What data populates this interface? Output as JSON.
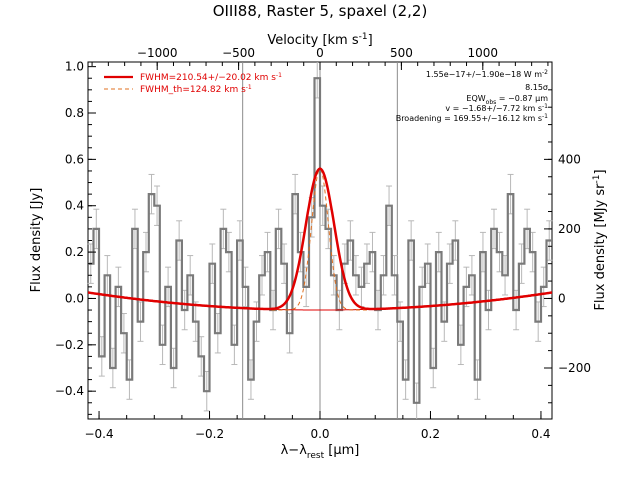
{
  "chart_data": {
    "type": "line",
    "title": "OIII88, Raster 5, spaxel (2,2)",
    "xlabel": "λ−λ",
    "xlabel_sub": "rest",
    "xlabel_unit": "[μm]",
    "ylabel": "Flux density [Jy]",
    "y2label": "Flux density [MJy sr",
    "y2label_sup": "-1",
    "top_axis_label": "Velocity [km s",
    "top_axis_label_sup": "-1",
    "xlim": [
      -0.42,
      0.42
    ],
    "ylim": [
      -0.52,
      1.02
    ],
    "x_ticks": [
      -0.4,
      -0.2,
      0.0,
      0.2,
      0.4
    ],
    "x_tick_labels": [
      "−0.4",
      "−0.2",
      "0.0",
      "0.2",
      "0.4"
    ],
    "y_ticks": [
      -0.4,
      -0.2,
      0.0,
      0.2,
      0.4,
      0.6,
      0.8,
      1.0
    ],
    "y_tick_labels": [
      "−0.4",
      "−0.2",
      "0.0",
      "0.2",
      "0.4",
      "0.6",
      "0.8",
      "1.0"
    ],
    "velocity_ticks": [
      -1000,
      -500,
      0,
      500,
      1000
    ],
    "velocity_tick_labels": [
      "−1000",
      "−500",
      "0",
      "500",
      "1000"
    ],
    "right_ticks": [
      -200,
      0,
      200,
      400
    ],
    "right_tick_labels": [
      "−200",
      "0",
      "200",
      "400"
    ],
    "vertical_lines_x": [
      -0.14,
      0.0,
      0.14
    ],
    "spectrum_x": [
      -0.415,
      -0.405,
      -0.395,
      -0.385,
      -0.375,
      -0.365,
      -0.355,
      -0.345,
      -0.335,
      -0.325,
      -0.315,
      -0.305,
      -0.295,
      -0.285,
      -0.275,
      -0.265,
      -0.255,
      -0.245,
      -0.235,
      -0.225,
      -0.215,
      -0.205,
      -0.195,
      -0.185,
      -0.175,
      -0.165,
      -0.155,
      -0.145,
      -0.135,
      -0.125,
      -0.115,
      -0.105,
      -0.095,
      -0.085,
      -0.075,
      -0.065,
      -0.055,
      -0.045,
      -0.035,
      -0.025,
      -0.015,
      -0.005,
      0.005,
      0.015,
      0.025,
      0.035,
      0.045,
      0.055,
      0.065,
      0.075,
      0.085,
      0.095,
      0.105,
      0.115,
      0.125,
      0.135,
      0.145,
      0.155,
      0.165,
      0.175,
      0.185,
      0.195,
      0.205,
      0.215,
      0.225,
      0.235,
      0.245,
      0.255,
      0.265,
      0.275,
      0.285,
      0.295,
      0.305,
      0.315,
      0.325,
      0.335,
      0.345,
      0.355,
      0.365,
      0.375,
      0.385,
      0.395,
      0.405,
      0.415
    ],
    "spectrum_y": [
      0.15,
      0.3,
      -0.25,
      0.1,
      -0.3,
      0.05,
      -0.15,
      -0.35,
      0.3,
      -0.1,
      0.2,
      0.45,
      0.4,
      -0.2,
      0.05,
      -0.3,
      0.25,
      -0.05,
      0.1,
      -0.1,
      -0.25,
      -0.4,
      0.15,
      -0.15,
      0.3,
      0.2,
      -0.2,
      0.25,
      0.05,
      -0.35,
      -0.1,
      0.1,
      0.2,
      -0.05,
      0.3,
      0.15,
      -0.15,
      0.45,
      0.2,
      0.05,
      0.35,
      0.95,
      0.4,
      0.3,
      0.1,
      -0.05,
      0.15,
      0.25,
      0.1,
      0.05,
      0.15,
      0.2,
      -0.05,
      0.1,
      0.4,
      0.1,
      -0.1,
      -0.35,
      0.25,
      -0.45,
      0.05,
      0.15,
      -0.3,
      0.2,
      -0.1,
      0.15,
      0.25,
      -0.2,
      0.05,
      0.1,
      -0.35,
      0.2,
      -0.05,
      0.3,
      0.2,
      0.1,
      0.45,
      -0.05,
      0.15,
      0.3,
      0.2,
      -0.1,
      0.05,
      0.25
    ],
    "error_bar": 0.085,
    "fit": {
      "amplitude": 0.61,
      "center": 0.0,
      "fwhm_um": 0.06,
      "baseline_offset": -0.05,
      "baseline_quad": 0.43
    },
    "theoretical": {
      "amplitude": 0.61,
      "center": 0.0,
      "fwhm_um": 0.036
    },
    "legend": {
      "fit_label": "FWHM=210.54+/−20.02 km s",
      "fit_label_sup": "-1",
      "th_label": "FWHM_th=124.82 km s",
      "th_label_sup": "-1",
      "placement": "top-left"
    },
    "annotations": {
      "line1": "1.55e−17+/−1.90e−18 W m",
      "line1_sup": "-2",
      "line2": "8.15σ",
      "line3a": "EQW",
      "line3_sub": "obs",
      "line3b": " = −0.87 μm",
      "line4": "v = −1.68+/−7.72 km s",
      "line4_sup": "-1",
      "line5": "Broadening = 169.55+/−16.12 km s",
      "line5_sup": "-1"
    },
    "colors": {
      "spectrum": "#7a7a7a",
      "error": "#b8b8b8",
      "fit": "#e00000",
      "theoretical": "#e07020",
      "vline": "#8c8c8c"
    }
  }
}
